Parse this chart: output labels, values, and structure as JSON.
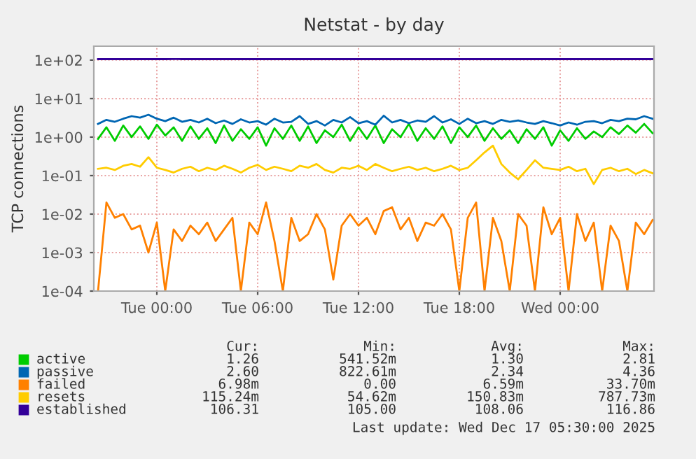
{
  "chart_data": {
    "type": "line",
    "title": "Netstat - by day",
    "ylabel": "TCP connections",
    "x": [
      "2025-12-15T20:30",
      "2025-12-15T21:00",
      "2025-12-15T21:30",
      "2025-12-15T22:00",
      "2025-12-15T22:30",
      "2025-12-15T23:00",
      "2025-12-15T23:30",
      "2025-12-16T00:00",
      "2025-12-16T00:30",
      "2025-12-16T01:00",
      "2025-12-16T01:30",
      "2025-12-16T02:00",
      "2025-12-16T02:30",
      "2025-12-16T03:00",
      "2025-12-16T03:30",
      "2025-12-16T04:00",
      "2025-12-16T04:30",
      "2025-12-16T05:00",
      "2025-12-16T05:30",
      "2025-12-16T06:00",
      "2025-12-16T06:30",
      "2025-12-16T07:00",
      "2025-12-16T07:30",
      "2025-12-16T08:00",
      "2025-12-16T08:30",
      "2025-12-16T09:00",
      "2025-12-16T09:30",
      "2025-12-16T10:00",
      "2025-12-16T10:30",
      "2025-12-16T11:00",
      "2025-12-16T11:30",
      "2025-12-16T12:00",
      "2025-12-16T12:30",
      "2025-12-16T13:00",
      "2025-12-16T13:30",
      "2025-12-16T14:00",
      "2025-12-16T14:30",
      "2025-12-16T15:00",
      "2025-12-16T15:30",
      "2025-12-16T16:00",
      "2025-12-16T16:30",
      "2025-12-16T17:00",
      "2025-12-16T17:30",
      "2025-12-16T18:00",
      "2025-12-16T18:30",
      "2025-12-16T19:00",
      "2025-12-16T19:30",
      "2025-12-16T20:00",
      "2025-12-16T20:30",
      "2025-12-16T21:00",
      "2025-12-16T21:30",
      "2025-12-16T22:00",
      "2025-12-16T22:30",
      "2025-12-16T23:00",
      "2025-12-16T23:30",
      "2025-12-17T00:00",
      "2025-12-17T00:30",
      "2025-12-17T01:00",
      "2025-12-17T01:30",
      "2025-12-17T02:00",
      "2025-12-17T02:30",
      "2025-12-17T03:00",
      "2025-12-17T03:30",
      "2025-12-17T04:00",
      "2025-12-17T04:30",
      "2025-12-17T05:00",
      "2025-12-17T05:30"
    ],
    "series": [
      {
        "name": "active",
        "color": "#00cc00",
        "values": [
          0.9,
          1.8,
          0.8,
          2.0,
          1.0,
          1.9,
          0.9,
          2.1,
          1.1,
          1.8,
          0.8,
          1.9,
          0.9,
          1.7,
          0.7,
          2.0,
          0.8,
          1.6,
          0.9,
          1.8,
          0.6,
          1.7,
          0.9,
          2.0,
          0.8,
          1.9,
          0.7,
          1.5,
          1.0,
          2.1,
          0.8,
          1.8,
          0.9,
          2.0,
          0.7,
          1.6,
          1.0,
          2.2,
          0.8,
          1.7,
          0.9,
          1.9,
          0.7,
          1.8,
          1.0,
          2.0,
          0.8,
          1.7,
          0.9,
          1.5,
          0.7,
          1.6,
          0.9,
          1.8,
          0.6,
          1.5,
          0.8,
          1.7,
          0.9,
          1.4,
          1.0,
          1.8,
          1.2,
          2.0,
          1.3,
          2.2,
          1.26
        ]
      },
      {
        "name": "passive",
        "color": "#0066b3",
        "values": [
          2.2,
          2.8,
          2.5,
          3.0,
          3.5,
          3.2,
          3.8,
          3.0,
          2.6,
          3.2,
          2.5,
          2.8,
          2.4,
          3.0,
          2.3,
          2.7,
          2.2,
          2.9,
          2.4,
          2.6,
          2.1,
          3.0,
          2.4,
          2.5,
          3.5,
          2.2,
          2.6,
          2.0,
          2.8,
          2.4,
          3.3,
          2.3,
          2.6,
          2.1,
          3.6,
          2.4,
          2.8,
          2.3,
          2.7,
          2.5,
          3.5,
          2.4,
          2.9,
          2.2,
          3.0,
          2.3,
          2.6,
          2.2,
          2.8,
          2.5,
          2.7,
          2.4,
          2.2,
          2.6,
          2.3,
          2.0,
          2.4,
          2.1,
          2.5,
          2.6,
          2.3,
          2.8,
          2.6,
          3.0,
          2.9,
          3.5,
          3.0
        ]
      },
      {
        "name": "failed",
        "color": "#ff8000",
        "values": [
          0.0001,
          0.02,
          0.008,
          0.01,
          0.004,
          0.005,
          0.001,
          0.006,
          0.0001,
          0.004,
          0.002,
          0.005,
          0.003,
          0.006,
          0.002,
          0.004,
          0.008,
          0.0001,
          0.006,
          0.003,
          0.02,
          0.002,
          0.0001,
          0.008,
          0.002,
          0.003,
          0.01,
          0.004,
          0.0002,
          0.005,
          0.01,
          0.005,
          0.008,
          0.003,
          0.012,
          0.015,
          0.004,
          0.008,
          0.002,
          0.006,
          0.005,
          0.01,
          0.004,
          0.0001,
          0.008,
          0.02,
          0.0001,
          0.008,
          0.002,
          0.0001,
          0.01,
          0.005,
          0.0001,
          0.015,
          0.003,
          0.008,
          0.0001,
          0.01,
          0.002,
          0.006,
          0.0001,
          0.005,
          0.002,
          0.0001,
          0.006,
          0.003,
          0.007
        ]
      },
      {
        "name": "resets",
        "color": "#ffcc00",
        "values": [
          0.15,
          0.16,
          0.14,
          0.18,
          0.2,
          0.17,
          0.3,
          0.16,
          0.14,
          0.12,
          0.15,
          0.17,
          0.13,
          0.16,
          0.14,
          0.18,
          0.15,
          0.12,
          0.16,
          0.19,
          0.14,
          0.17,
          0.15,
          0.13,
          0.18,
          0.16,
          0.2,
          0.14,
          0.12,
          0.16,
          0.15,
          0.18,
          0.14,
          0.2,
          0.16,
          0.13,
          0.15,
          0.17,
          0.14,
          0.16,
          0.13,
          0.15,
          0.18,
          0.14,
          0.16,
          0.25,
          0.4,
          0.6,
          0.2,
          0.12,
          0.08,
          0.14,
          0.25,
          0.16,
          0.15,
          0.14,
          0.17,
          0.13,
          0.15,
          0.06,
          0.14,
          0.16,
          0.13,
          0.15,
          0.11,
          0.14,
          0.115
        ]
      },
      {
        "name": "established",
        "color": "#330099",
        "values": [
          106,
          106,
          106,
          106,
          106,
          106,
          106,
          106,
          106,
          107,
          106,
          106,
          106,
          106,
          106,
          106,
          106,
          106,
          107,
          106,
          106,
          106,
          106,
          106,
          106,
          106,
          106,
          106,
          106,
          106,
          106,
          106,
          106,
          106,
          106,
          106,
          106,
          106,
          106,
          106,
          106,
          106,
          106,
          106,
          106,
          106,
          106,
          106,
          106,
          106,
          106,
          106,
          106,
          106,
          106,
          106,
          107,
          106,
          106,
          106,
          106,
          106,
          106,
          106,
          106,
          106,
          106
        ]
      }
    ],
    "log": "y",
    "xlim": [
      "2025-12-15T20:15",
      "2025-12-17T05:35"
    ],
    "ylim": [
      0.0001,
      230
    ],
    "xticks": [
      {
        "value": "2025-12-16T00:00",
        "label": "Tue 00:00"
      },
      {
        "value": "2025-12-16T06:00",
        "label": "Tue 06:00"
      },
      {
        "value": "2025-12-16T12:00",
        "label": "Tue 12:00"
      },
      {
        "value": "2025-12-16T18:00",
        "label": "Tue 18:00"
      },
      {
        "value": "2025-12-17T00:00",
        "label": "Wed 00:00"
      }
    ],
    "yticks": [
      {
        "value": 0.0001,
        "label": "1e-04"
      },
      {
        "value": 0.001,
        "label": "1e-03"
      },
      {
        "value": 0.01,
        "label": "1e-02"
      },
      {
        "value": 0.1,
        "label": "1e-01"
      },
      {
        "value": 1,
        "label": "1e+00"
      },
      {
        "value": 10,
        "label": "1e+01"
      },
      {
        "value": 100,
        "label": "1e+02"
      }
    ],
    "grid": true,
    "legend": "bottom",
    "data_labels": false,
    "annotations": [
      "Cur:",
      "Min:",
      "Avg:",
      "Max:",
      "1.26",
      "541.52m",
      "1.30",
      "2.81",
      "2.60",
      "822.61m",
      "2.34",
      "4.36",
      "6.98m",
      "0.00",
      "6.59m",
      "33.70m",
      "115.24m",
      "54.62m",
      "150.83m",
      "787.73m",
      "106.31",
      "105.00",
      "108.06",
      "116.86",
      "Last update: Wed Dec 17 05:30:00 2025"
    ]
  }
}
